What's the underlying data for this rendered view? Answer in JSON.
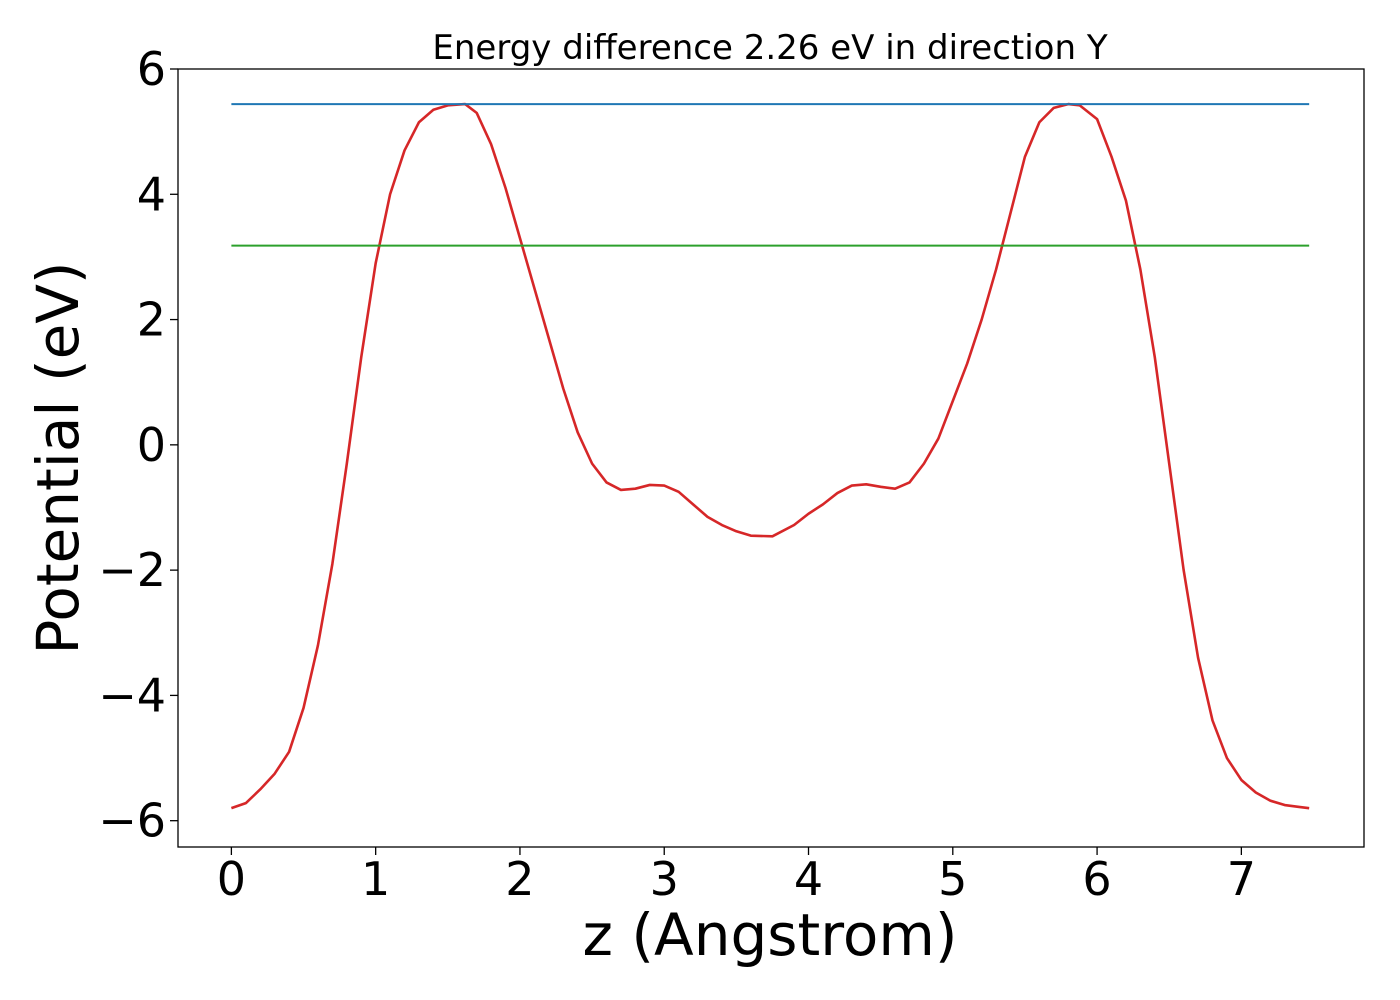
{
  "chart_data": {
    "type": "line",
    "title": "Energy difference 2.26 eV in direction Y",
    "xlabel": "z (Angstrom)",
    "ylabel": "Potential (eV)",
    "xlim": [
      -0.37,
      7.85
    ],
    "ylim": [
      -6.42,
      6.0
    ],
    "xticks": [
      0,
      1,
      2,
      3,
      4,
      5,
      6,
      7
    ],
    "yticks": [
      -6,
      -4,
      -2,
      0,
      2,
      4,
      6
    ],
    "xtick_labels": [
      "0",
      "1",
      "2",
      "3",
      "4",
      "5",
      "6",
      "7"
    ],
    "ytick_labels": [
      "−6",
      "−4",
      "−2",
      "0",
      "2",
      "4",
      "6"
    ],
    "grid": false,
    "legend": "none",
    "series": [
      {
        "color": "#d62728",
        "x": [
          0,
          0.1,
          0.2,
          0.3,
          0.4,
          0.5,
          0.6,
          0.7,
          0.8,
          0.9,
          1.0,
          1.1,
          1.2,
          1.3,
          1.4,
          1.5,
          1.62,
          1.7,
          1.8,
          1.9,
          2.0,
          2.1,
          2.2,
          2.3,
          2.4,
          2.5,
          2.6,
          2.7,
          2.8,
          2.9,
          3.0,
          3.1,
          3.2,
          3.3,
          3.4,
          3.5,
          3.6,
          3.75,
          3.9,
          4.0,
          4.1,
          4.2,
          4.3,
          4.4,
          4.5,
          4.6,
          4.7,
          4.8,
          4.9,
          5.0,
          5.1,
          5.2,
          5.3,
          5.4,
          5.5,
          5.6,
          5.7,
          5.8,
          5.88,
          6.0,
          6.1,
          6.2,
          6.3,
          6.4,
          6.5,
          6.6,
          6.7,
          6.8,
          6.9,
          7.0,
          7.1,
          7.2,
          7.3,
          7.4,
          7.47
        ],
        "y": [
          -5.8,
          -5.72,
          -5.5,
          -5.25,
          -4.9,
          -4.2,
          -3.2,
          -1.9,
          -0.3,
          1.4,
          2.9,
          4.0,
          4.7,
          5.15,
          5.35,
          5.42,
          5.44,
          5.3,
          4.8,
          4.1,
          3.3,
          2.5,
          1.7,
          0.9,
          0.2,
          -0.3,
          -0.6,
          -0.72,
          -0.7,
          -0.64,
          -0.65,
          -0.75,
          -0.95,
          -1.15,
          -1.28,
          -1.38,
          -1.45,
          -1.46,
          -1.28,
          -1.1,
          -0.95,
          -0.77,
          -0.65,
          -0.63,
          -0.67,
          -0.7,
          -0.6,
          -0.3,
          0.1,
          0.7,
          1.3,
          2.0,
          2.8,
          3.7,
          4.6,
          5.15,
          5.38,
          5.44,
          5.42,
          5.2,
          4.6,
          3.9,
          2.8,
          1.4,
          -0.3,
          -2.0,
          -3.4,
          -4.4,
          -5.0,
          -5.35,
          -5.55,
          -5.68,
          -5.75,
          -5.78,
          -5.8
        ]
      },
      {
        "color": "#1f77b4",
        "x": [
          0,
          7.47
        ],
        "y": [
          5.44,
          5.44
        ]
      },
      {
        "color": "#2ca02c",
        "x": [
          0,
          7.47
        ],
        "y": [
          3.18,
          3.18
        ]
      }
    ]
  }
}
